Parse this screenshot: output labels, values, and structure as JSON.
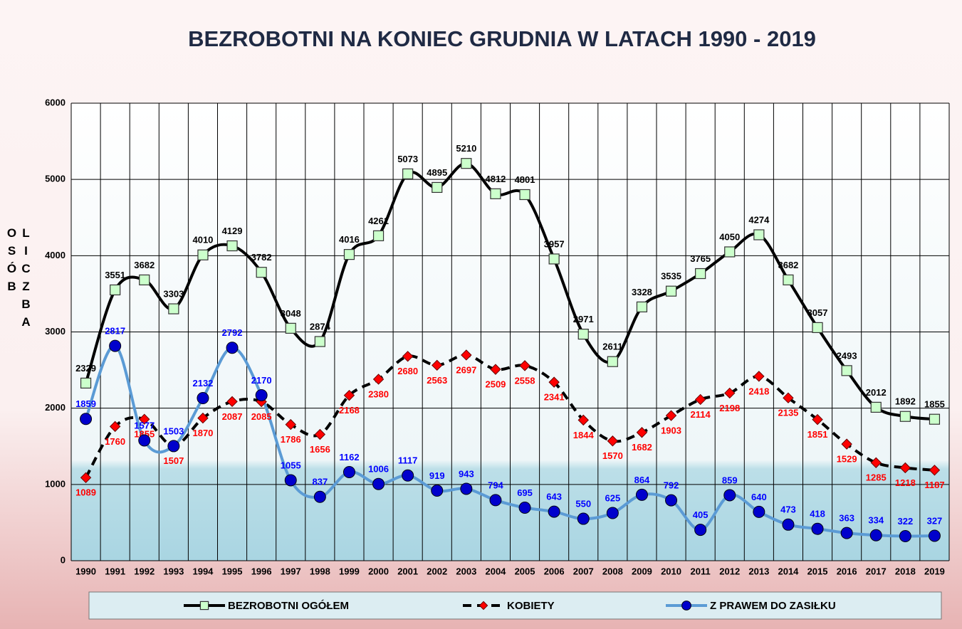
{
  "chart_data": {
    "type": "line",
    "title": "BEZROBOTNI NA KONIEC GRUDNIA W LATACH 1990 - 2019",
    "y_label": "LICZBA OSÓB",
    "categories": [
      "1990",
      "1991",
      "1992",
      "1993",
      "1994",
      "1995",
      "1996",
      "1997",
      "1998",
      "1999",
      "2000",
      "2001",
      "2002",
      "2003",
      "2004",
      "2005",
      "2006",
      "2007",
      "2008",
      "2009",
      "2010",
      "2011",
      "2012",
      "2013",
      "2014",
      "2015",
      "2016",
      "2017",
      "2018",
      "2019"
    ],
    "series": [
      {
        "name": "BEZROBOTNI OGÓŁEM",
        "color": "#000000",
        "marker_color": "#ccffcc",
        "label_color": "#000000",
        "dash": false,
        "marker": "square",
        "values": [
          2329,
          3551,
          3682,
          3303,
          4010,
          4129,
          3782,
          3048,
          2874,
          4016,
          4261,
          5073,
          4895,
          5210,
          4812,
          4801,
          3957,
          2971,
          2611,
          3328,
          3535,
          3765,
          4050,
          4274,
          3682,
          3057,
          2493,
          2012,
          1892,
          1855
        ]
      },
      {
        "name": "KOBIETY",
        "color": "#000000",
        "marker_color": "#ff0000",
        "label_color": "#ff0000",
        "dash": true,
        "marker": "diamond",
        "values": [
          1089,
          1760,
          1855,
          1507,
          1870,
          2087,
          2085,
          1786,
          1656,
          2168,
          2380,
          2680,
          2563,
          2697,
          2509,
          2558,
          2341,
          1844,
          1570,
          1682,
          1903,
          2114,
          2198,
          2418,
          2135,
          1851,
          1529,
          1285,
          1218,
          1187
        ]
      },
      {
        "name": "Z PRAWEM DO ZASIŁKU",
        "color": "#5b9bd5",
        "marker_color": "#0000cc",
        "label_color": "#0000ff",
        "dash": false,
        "marker": "circle",
        "values": [
          1859,
          2817,
          1577,
          1503,
          2132,
          2792,
          2170,
          1055,
          837,
          1162,
          1006,
          1117,
          919,
          943,
          794,
          695,
          643,
          550,
          625,
          864,
          792,
          405,
          859,
          640,
          473,
          418,
          363,
          334,
          322,
          327
        ]
      }
    ],
    "ylim": [
      0,
      6000
    ],
    "yticks": [
      0,
      1000,
      2000,
      3000,
      4000,
      5000,
      6000
    ],
    "grid": true
  }
}
